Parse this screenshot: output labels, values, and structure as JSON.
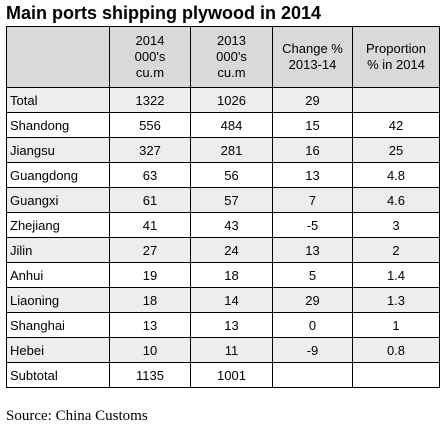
{
  "title": "Main ports shipping plywood in 2014",
  "columns": [
    {
      "lines": [
        "",
        "",
        ""
      ]
    },
    {
      "lines": [
        "2014",
        "000's",
        "cu.m"
      ]
    },
    {
      "lines": [
        "2013",
        "000's",
        "cu.m"
      ]
    },
    {
      "lines": [
        "Change %",
        "2013-14",
        ""
      ]
    },
    {
      "lines": [
        "Proportion",
        "% in 2014",
        ""
      ]
    }
  ],
  "rows": [
    {
      "name": "Total",
      "v2014": "1322",
      "v2013": "1026",
      "change": "29",
      "proportion": ""
    },
    {
      "name": "Shandong",
      "v2014": "556",
      "v2013": "484",
      "change": "15",
      "proportion": "42"
    },
    {
      "name": "Jiangsu",
      "v2014": "327",
      "v2013": "281",
      "change": "16",
      "proportion": "25"
    },
    {
      "name": "Guangdong",
      "v2014": "63",
      "v2013": "56",
      "change": "13",
      "proportion": "4.8"
    },
    {
      "name": "Guangxi",
      "v2014": "61",
      "v2013": "57",
      "change": "7",
      "proportion": "4.6"
    },
    {
      "name": "Zhejiang",
      "v2014": "41",
      "v2013": "43",
      "change": "-5",
      "proportion": "3"
    },
    {
      "name": "Jilin",
      "v2014": "27",
      "v2013": "24",
      "change": "13",
      "proportion": "2"
    },
    {
      "name": "Anhui",
      "v2014": "19",
      "v2013": "18",
      "change": "5",
      "proportion": "1.4"
    },
    {
      "name": "Liaoning",
      "v2014": "18",
      "v2013": "14",
      "change": "29",
      "proportion": "1.3"
    },
    {
      "name": "Shanghai",
      "v2014": "13",
      "v2013": "13",
      "change": "0",
      "proportion": "1"
    },
    {
      "name": "Hebei",
      "v2014": "10",
      "v2013": "11",
      "change": "-9",
      "proportion": "0.8"
    },
    {
      "name": "Subtotal",
      "v2014": "1135",
      "v2013": "1001",
      "change": "",
      "proportion": ""
    }
  ],
  "source": "Source: China Customs"
}
